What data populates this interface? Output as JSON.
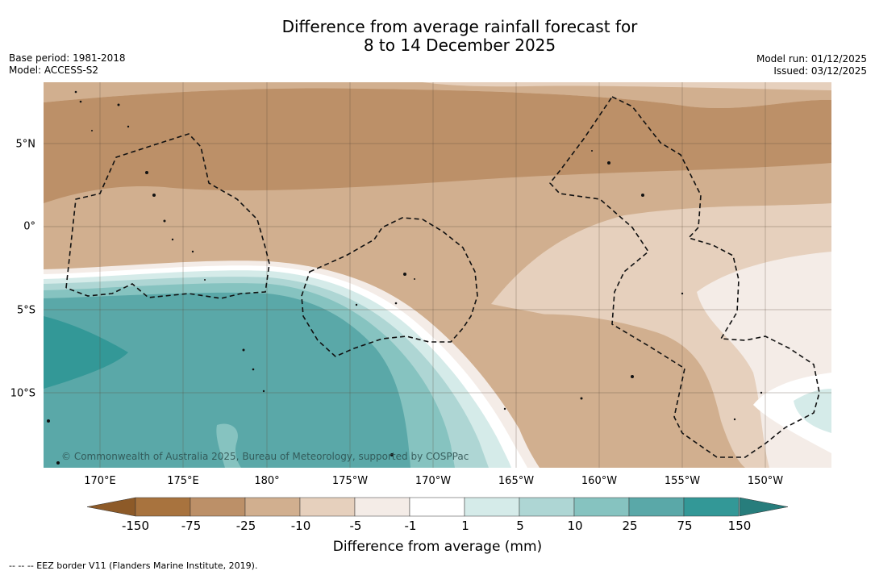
{
  "title": {
    "line1": "Difference from average rainfall forecast for",
    "line2": "8 to 14 December 2025"
  },
  "meta": {
    "base_period": "Base period: 1981-2018",
    "model": "Model: ACCESS-S2",
    "model_run": "Model run: 01/12/2025",
    "issued": "Issued: 03/12/2025"
  },
  "map": {
    "copyright": "© Commonwealth of Australia 2025, Bureau of Meteorology, supported by COSPPac",
    "lon_labels": [
      "170°E",
      "175°E",
      "180°",
      "175°W",
      "170°W",
      "165°W",
      "160°W",
      "155°W",
      "150°W"
    ],
    "lat_labels": [
      "5°N",
      "0°",
      "5°S",
      "10°S"
    ]
  },
  "colorbar": {
    "title": "Difference from average (mm)",
    "labels": [
      "-150",
      "-75",
      "-25",
      "-10",
      "-5",
      "-1",
      "1",
      "5",
      "10",
      "25",
      "75",
      "150"
    ],
    "colors": [
      "#a8733e",
      "#bc9068",
      "#d1af8f",
      "#e6d0bd",
      "#f4ece7",
      "#ffffff",
      "#d5ebe9",
      "#aed6d4",
      "#86c3c0",
      "#5aa8a8",
      "#339897"
    ],
    "low_extend_color": "#8d5a28",
    "high_extend_color": "#277d7c"
  },
  "footnote": "--  --  -- EEZ border V11 (Flanders Marine Institute, 2019)."
}
